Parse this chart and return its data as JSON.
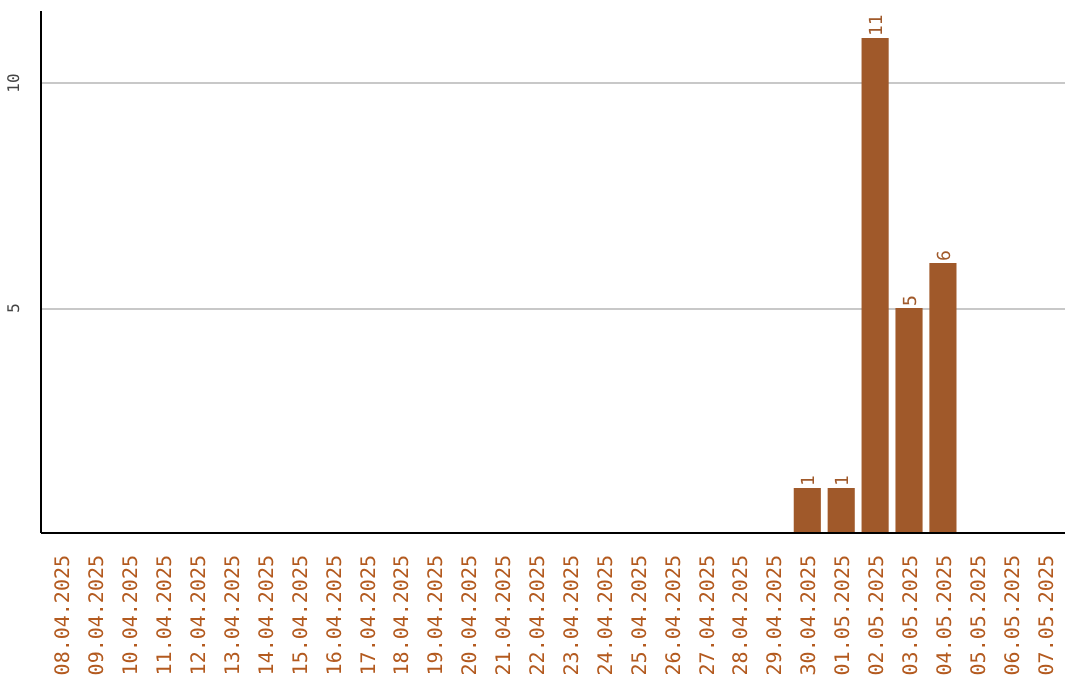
{
  "chart_data": {
    "type": "bar",
    "categories": [
      "08.04.2025",
      "09.04.2025",
      "10.04.2025",
      "11.04.2025",
      "12.04.2025",
      "13.04.2025",
      "14.04.2025",
      "15.04.2025",
      "16.04.2025",
      "17.04.2025",
      "18.04.2025",
      "19.04.2025",
      "20.04.2025",
      "21.04.2025",
      "22.04.2025",
      "23.04.2025",
      "24.04.2025",
      "25.04.2025",
      "26.04.2025",
      "27.04.2025",
      "28.04.2025",
      "29.04.2025",
      "30.04.2025",
      "01.05.2025",
      "02.05.2025",
      "03.05.2025",
      "04.05.2025",
      "05.05.2025",
      "06.05.2025",
      "07.05.2025"
    ],
    "values": [
      0,
      0,
      0,
      0,
      0,
      0,
      0,
      0,
      0,
      0,
      0,
      0,
      0,
      0,
      0,
      0,
      0,
      0,
      0,
      0,
      0,
      0,
      1,
      1,
      11,
      5,
      6,
      0,
      0,
      0
    ],
    "value_labels": [
      null,
      null,
      null,
      null,
      null,
      null,
      null,
      null,
      null,
      null,
      null,
      null,
      null,
      null,
      null,
      null,
      null,
      null,
      null,
      null,
      null,
      null,
      "1",
      "1",
      "11",
      "5",
      "6",
      null,
      null,
      null
    ],
    "color": "#a0592a",
    "ylim": [
      0,
      11.6
    ],
    "yticks": [
      5,
      10
    ],
    "grid": "y"
  }
}
